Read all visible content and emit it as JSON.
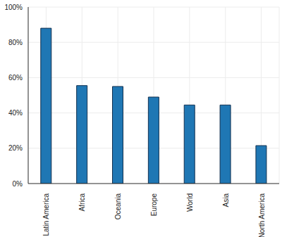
{
  "chart_data": {
    "type": "bar",
    "categories": [
      "Latin America",
      "Africa",
      "Oceania",
      "Europe",
      "World",
      "Asia",
      "North America"
    ],
    "values": [
      88,
      55.5,
      55,
      49,
      44.5,
      44.5,
      21.5
    ],
    "color": "#1f77b4",
    "ylim": [
      0,
      100
    ],
    "yticks": [
      {
        "value": 0,
        "label": "0%"
      },
      {
        "value": 20,
        "label": "20%"
      },
      {
        "value": 40,
        "label": "40%"
      },
      {
        "value": 60,
        "label": "60%"
      },
      {
        "value": 80,
        "label": "80%"
      },
      {
        "value": 100,
        "label": "100%"
      }
    ],
    "grid": true
  }
}
